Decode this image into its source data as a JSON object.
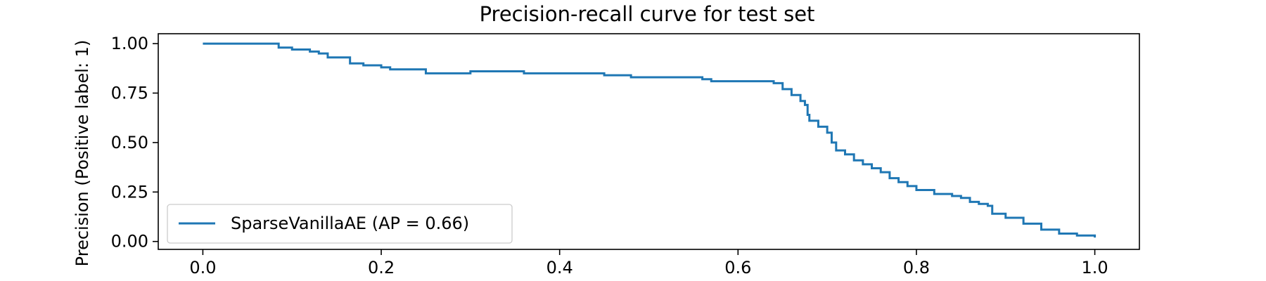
{
  "chart_data": {
    "type": "line",
    "title": "Precision-recall curve for test set",
    "xlabel": "",
    "ylabel": "Precision (Positive label: 1)",
    "xlim": [
      -0.05,
      1.05
    ],
    "ylim": [
      -0.04,
      1.05
    ],
    "xticks": [
      0.0,
      0.2,
      0.4,
      0.6,
      0.8,
      1.0
    ],
    "xtick_labels": [
      "0.0",
      "0.2",
      "0.4",
      "0.6",
      "0.8",
      "1.0"
    ],
    "yticks": [
      0.0,
      0.25,
      0.5,
      0.75,
      1.0
    ],
    "ytick_labels": [
      "0.00",
      "0.25",
      "0.50",
      "0.75",
      "1.00"
    ],
    "grid": false,
    "legend": {
      "placement": "lower-left",
      "entries": [
        "SparseVanillaAE (AP = 0.66)"
      ]
    },
    "series": [
      {
        "name": "SparseVanillaAE (AP = 0.66)",
        "color": "#1f77b4",
        "step": true,
        "points": [
          [
            0.0,
            1.0
          ],
          [
            0.085,
            1.0
          ],
          [
            0.085,
            0.98
          ],
          [
            0.1,
            0.98
          ],
          [
            0.1,
            0.97
          ],
          [
            0.12,
            0.97
          ],
          [
            0.12,
            0.96
          ],
          [
            0.13,
            0.96
          ],
          [
            0.13,
            0.95
          ],
          [
            0.14,
            0.95
          ],
          [
            0.14,
            0.93
          ],
          [
            0.165,
            0.93
          ],
          [
            0.165,
            0.9
          ],
          [
            0.18,
            0.9
          ],
          [
            0.18,
            0.89
          ],
          [
            0.2,
            0.89
          ],
          [
            0.2,
            0.88
          ],
          [
            0.21,
            0.88
          ],
          [
            0.21,
            0.87
          ],
          [
            0.25,
            0.87
          ],
          [
            0.25,
            0.85
          ],
          [
            0.3,
            0.86
          ],
          [
            0.35,
            0.86
          ],
          [
            0.36,
            0.85
          ],
          [
            0.4,
            0.85
          ],
          [
            0.45,
            0.84
          ],
          [
            0.48,
            0.83
          ],
          [
            0.55,
            0.83
          ],
          [
            0.56,
            0.82
          ],
          [
            0.57,
            0.81
          ],
          [
            0.6,
            0.81
          ],
          [
            0.63,
            0.81
          ],
          [
            0.64,
            0.8
          ],
          [
            0.65,
            0.77
          ],
          [
            0.66,
            0.74
          ],
          [
            0.67,
            0.71
          ],
          [
            0.675,
            0.69
          ],
          [
            0.678,
            0.64
          ],
          [
            0.68,
            0.61
          ],
          [
            0.69,
            0.58
          ],
          [
            0.7,
            0.55
          ],
          [
            0.705,
            0.5
          ],
          [
            0.71,
            0.46
          ],
          [
            0.72,
            0.44
          ],
          [
            0.73,
            0.41
          ],
          [
            0.74,
            0.39
          ],
          [
            0.75,
            0.37
          ],
          [
            0.76,
            0.35
          ],
          [
            0.77,
            0.32
          ],
          [
            0.78,
            0.3
          ],
          [
            0.79,
            0.28
          ],
          [
            0.8,
            0.26
          ],
          [
            0.82,
            0.24
          ],
          [
            0.84,
            0.23
          ],
          [
            0.85,
            0.22
          ],
          [
            0.86,
            0.2
          ],
          [
            0.87,
            0.19
          ],
          [
            0.88,
            0.18
          ],
          [
            0.885,
            0.14
          ],
          [
            0.9,
            0.12
          ],
          [
            0.92,
            0.09
          ],
          [
            0.94,
            0.06
          ],
          [
            0.96,
            0.04
          ],
          [
            0.98,
            0.03
          ],
          [
            1.0,
            0.02
          ]
        ]
      }
    ]
  }
}
